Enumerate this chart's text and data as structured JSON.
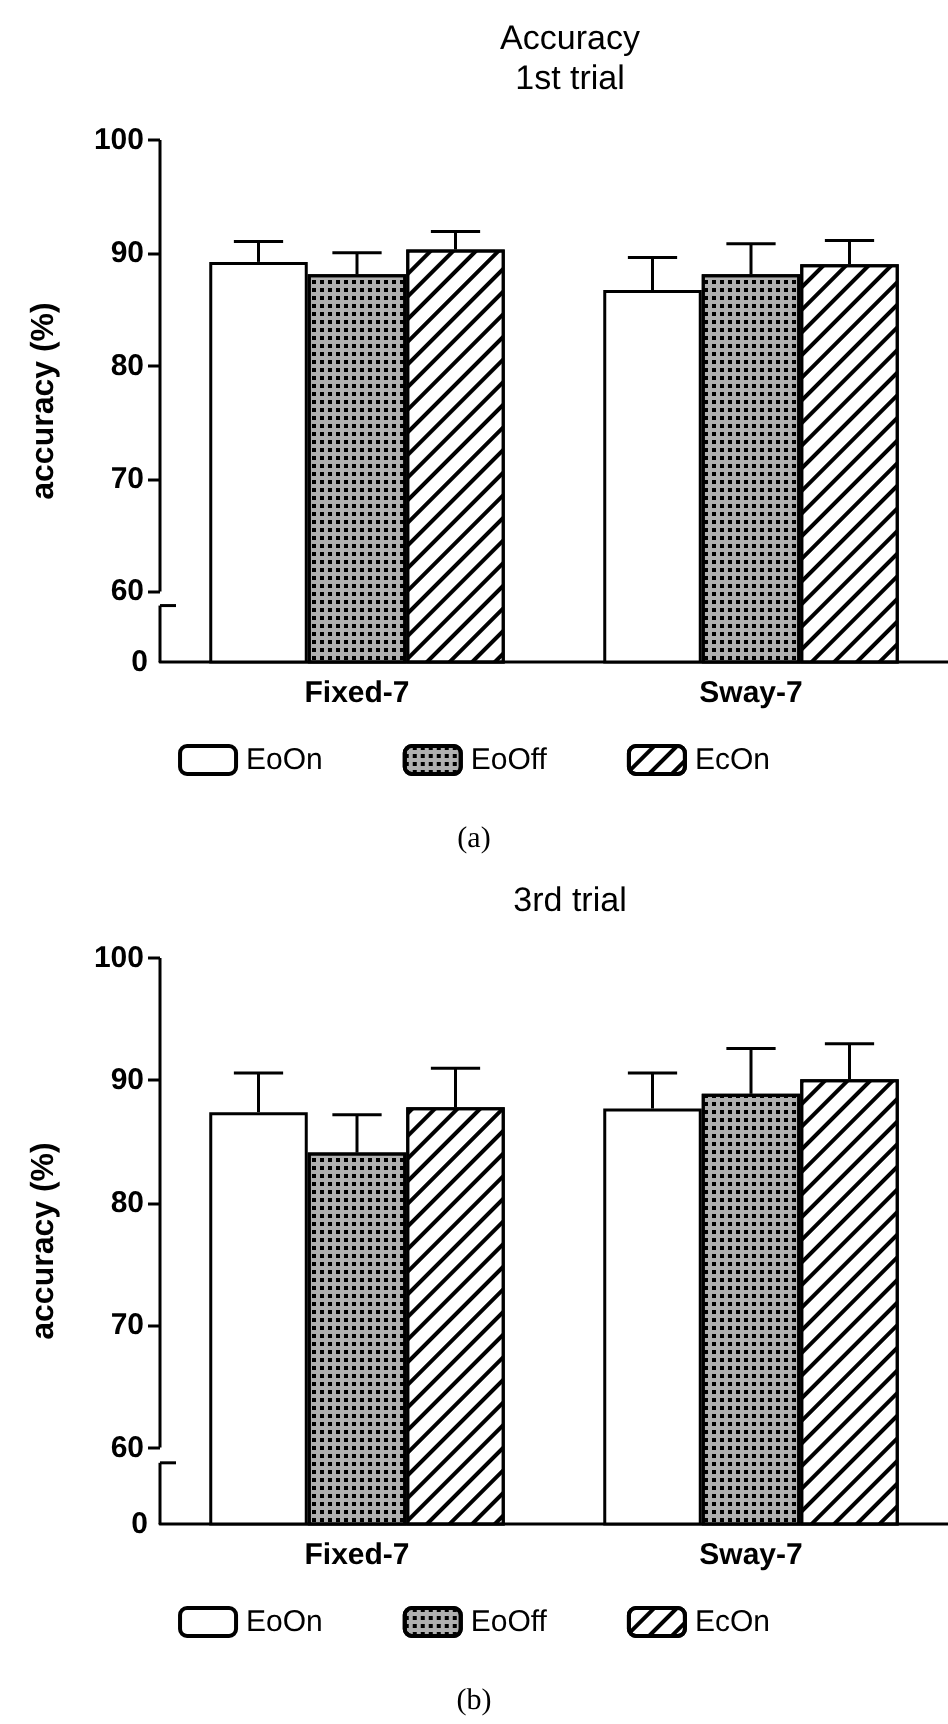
{
  "chart_data": [
    {
      "type": "bar",
      "title": "Accuracy\n1st trial",
      "ylabel": "accuracy (%)",
      "categories": [
        "Fixed-7",
        "Sway-7"
      ],
      "ylim": [
        60,
        100
      ],
      "yticks": [
        60,
        70,
        80,
        90,
        100
      ],
      "grid": false,
      "legend": "bottom",
      "annotations": [
        "0",
        "(a)"
      ],
      "series": [
        {
          "name": "EoOn",
          "color": "#ffffff",
          "values": [
            89.2,
            86.7
          ],
          "errors": [
            [
              89.2,
              91.0
            ],
            [
              86.7,
              89.6
            ]
          ]
        },
        {
          "name": "EoOff",
          "color": "#b0b0b0",
          "values": [
            88.1,
            88.1
          ],
          "errors": [
            [
              88.1,
              90.0
            ],
            [
              88.1,
              90.8
            ]
          ]
        },
        {
          "name": "EcOn",
          "color": "#ffffff",
          "values": [
            90.3,
            89.0
          ],
          "errors": [
            [
              90.3,
              91.9
            ],
            [
              89.0,
              91.1
            ]
          ]
        }
      ]
    },
    {
      "type": "bar",
      "title": "3rd trial",
      "ylabel": "accuracy (%)",
      "categories": [
        "Fixed-7",
        "Sway-7"
      ],
      "ylim": [
        60,
        100
      ],
      "yticks": [
        60,
        70,
        80,
        90,
        100
      ],
      "grid": false,
      "legend": "bottom",
      "annotations": [
        "0",
        "(b)"
      ],
      "series": [
        {
          "name": "EoOn",
          "color": "#ffffff",
          "values": [
            87.4,
            87.7
          ],
          "errors": [
            [
              87.4,
              90.6
            ],
            [
              87.7,
              90.6
            ]
          ]
        },
        {
          "name": "EoOff",
          "color": "#b0b0b0",
          "values": [
            84.1,
            88.9
          ],
          "errors": [
            [
              84.1,
              87.2
            ],
            [
              88.9,
              92.6
            ]
          ]
        },
        {
          "name": "EcOn",
          "color": "#ffffff",
          "values": [
            87.8,
            90.1
          ],
          "errors": [
            [
              87.8,
              91.0
            ],
            [
              90.1,
              93.0
            ]
          ]
        }
      ]
    }
  ]
}
